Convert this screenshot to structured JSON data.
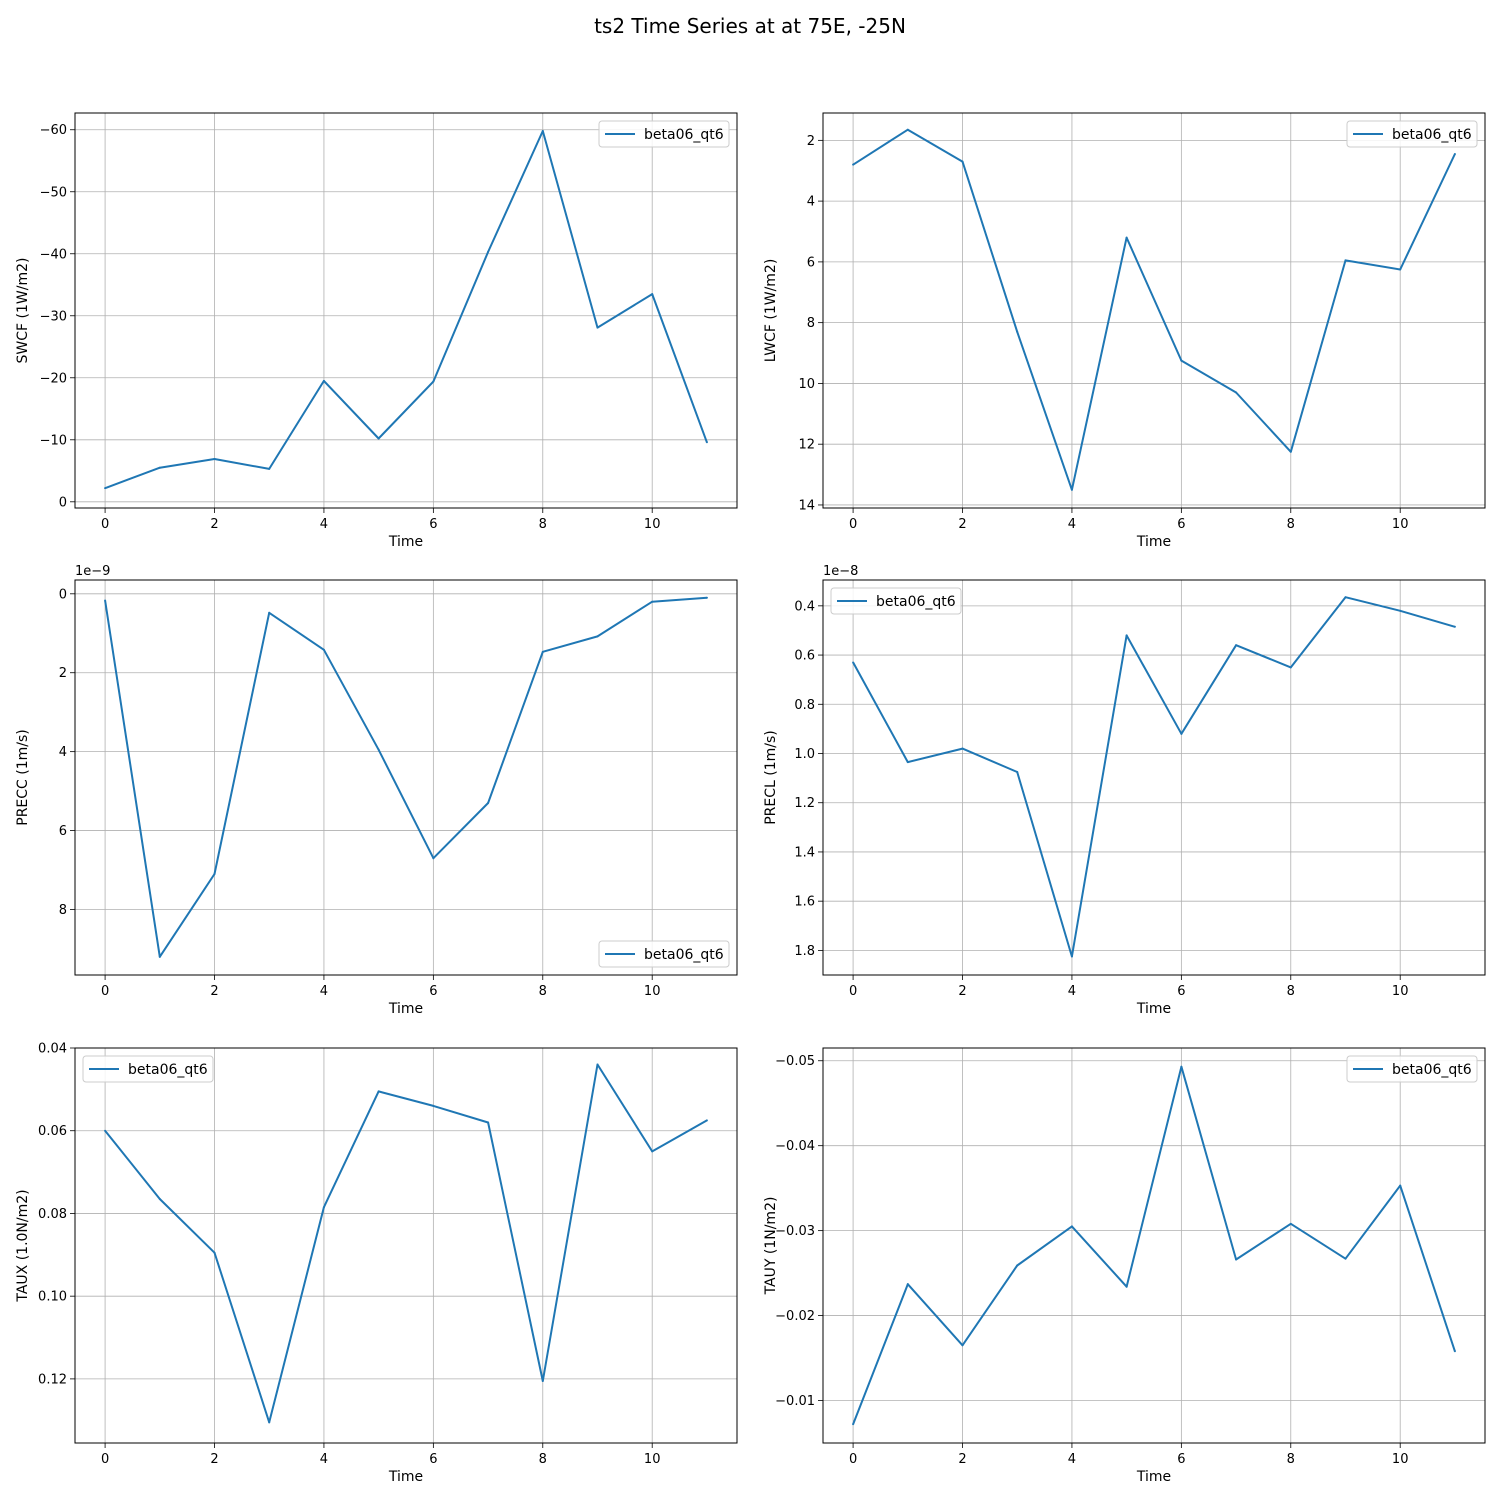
{
  "figure": {
    "title": "ts2 Time Series at at 75E, -25N"
  },
  "colors": {
    "line": "#1f77b4",
    "grid": "#b0b0b0",
    "axes": "#000000",
    "legend_border": "#cccccc"
  },
  "chart_data": [
    {
      "type": "line",
      "xlabel": "Time",
      "ylabel": "SWCF (1W/m2)",
      "exponent_label": "",
      "x": [
        0,
        1,
        2,
        3,
        4,
        5,
        6,
        7,
        8,
        9,
        10,
        11
      ],
      "series": [
        {
          "name": "beta06_qt6",
          "values": [
            -2.2,
            -5.5,
            -6.9,
            -5.3,
            -19.5,
            -10.2,
            -19.4,
            -40.3,
            -59.8,
            -28.1,
            -33.5,
            -9.6
          ]
        }
      ],
      "xlim": [
        -0.55,
        11.55
      ],
      "ylim": [
        1.0,
        -62.7
      ],
      "y_inverted": true,
      "xticks": [
        0,
        2,
        4,
        6,
        8,
        10
      ],
      "xtick_labels": [
        "0",
        "2",
        "4",
        "6",
        "8",
        "10"
      ],
      "yticks": [
        0,
        -10,
        -20,
        -30,
        -40,
        -50,
        -60
      ],
      "ytick_labels": [
        "0",
        "−10",
        "−20",
        "−30",
        "−40",
        "−50",
        "−60"
      ],
      "grid": true,
      "legend_position": "upper right"
    },
    {
      "type": "line",
      "xlabel": "Time",
      "ylabel": "LWCF (1W/m2)",
      "exponent_label": "",
      "x": [
        0,
        1,
        2,
        3,
        4,
        5,
        6,
        7,
        8,
        9,
        10,
        11
      ],
      "series": [
        {
          "name": "beta06_qt6",
          "values": [
            2.8,
            1.65,
            2.7,
            8.3,
            13.5,
            5.2,
            9.25,
            10.3,
            12.25,
            5.95,
            6.25,
            2.45
          ]
        }
      ],
      "xlim": [
        -0.55,
        11.55
      ],
      "ylim": [
        14.1,
        1.1
      ],
      "y_inverted": true,
      "xticks": [
        0,
        2,
        4,
        6,
        8,
        10
      ],
      "xtick_labels": [
        "0",
        "2",
        "4",
        "6",
        "8",
        "10"
      ],
      "yticks": [
        2,
        4,
        6,
        8,
        10,
        12,
        14
      ],
      "ytick_labels": [
        "2",
        "4",
        "6",
        "8",
        "10",
        "12",
        "14"
      ],
      "grid": true,
      "legend_position": "upper right"
    },
    {
      "type": "line",
      "xlabel": "Time",
      "ylabel": "PRECC (1m/s)",
      "exponent_label": "1e−9",
      "x": [
        0,
        1,
        2,
        3,
        4,
        5,
        6,
        7,
        8,
        9,
        10,
        11
      ],
      "series": [
        {
          "name": "beta06_qt6",
          "values": [
            0.17,
            9.2,
            7.1,
            0.48,
            1.42,
            3.95,
            6.7,
            5.3,
            1.47,
            1.08,
            0.2,
            0.1
          ]
        }
      ],
      "xlim": [
        -0.55,
        11.55
      ],
      "ylim": [
        9.66,
        -0.35
      ],
      "y_inverted": true,
      "xticks": [
        0,
        2,
        4,
        6,
        8,
        10
      ],
      "xtick_labels": [
        "0",
        "2",
        "4",
        "6",
        "8",
        "10"
      ],
      "yticks": [
        0,
        2,
        4,
        6,
        8
      ],
      "ytick_labels": [
        "0",
        "2",
        "4",
        "6",
        "8"
      ],
      "grid": true,
      "legend_position": "lower right"
    },
    {
      "type": "line",
      "xlabel": "Time",
      "ylabel": "PRECL (1m/s)",
      "exponent_label": "1e−8",
      "x": [
        0,
        1,
        2,
        3,
        4,
        5,
        6,
        7,
        8,
        9,
        10,
        11
      ],
      "series": [
        {
          "name": "beta06_qt6",
          "values": [
            0.63,
            1.035,
            0.98,
            1.075,
            1.825,
            0.52,
            0.92,
            0.56,
            0.65,
            0.365,
            0.42,
            0.485
          ]
        }
      ],
      "xlim": [
        -0.55,
        11.55
      ],
      "ylim": [
        1.9,
        0.295
      ],
      "y_inverted": true,
      "xticks": [
        0,
        2,
        4,
        6,
        8,
        10
      ],
      "xtick_labels": [
        "0",
        "2",
        "4",
        "6",
        "8",
        "10"
      ],
      "yticks": [
        0.4,
        0.6,
        0.8,
        1.0,
        1.2,
        1.4,
        1.6,
        1.8
      ],
      "ytick_labels": [
        "0.4",
        "0.6",
        "0.8",
        "1.0",
        "1.2",
        "1.4",
        "1.6",
        "1.8"
      ],
      "grid": true,
      "legend_position": "upper left"
    },
    {
      "type": "line",
      "xlabel": "Time",
      "ylabel": "TAUX (1.0N/m2)",
      "exponent_label": "",
      "x": [
        0,
        1,
        2,
        3,
        4,
        5,
        6,
        7,
        8,
        9,
        10,
        11
      ],
      "series": [
        {
          "name": "beta06_qt6",
          "values": [
            0.06,
            0.0765,
            0.0895,
            0.1305,
            0.0785,
            0.0505,
            0.054,
            0.058,
            0.1205,
            0.044,
            0.065,
            0.0575
          ]
        }
      ],
      "xlim": [
        -0.55,
        11.55
      ],
      "ylim": [
        0.1355,
        0.04
      ],
      "y_inverted": true,
      "xticks": [
        0,
        2,
        4,
        6,
        8,
        10
      ],
      "xtick_labels": [
        "0",
        "2",
        "4",
        "6",
        "8",
        "10"
      ],
      "yticks": [
        0.04,
        0.06,
        0.08,
        0.1,
        0.12
      ],
      "ytick_labels": [
        "0.04",
        "0.06",
        "0.08",
        "0.10",
        "0.12"
      ],
      "grid": true,
      "legend_position": "upper left"
    },
    {
      "type": "line",
      "xlabel": "Time",
      "ylabel": "TAUY (1N/m2)",
      "exponent_label": "",
      "x": [
        0,
        1,
        2,
        3,
        4,
        5,
        6,
        7,
        8,
        9,
        10,
        11
      ],
      "series": [
        {
          "name": "beta06_qt6",
          "values": [
            -0.0072,
            -0.0237,
            -0.0165,
            -0.0259,
            -0.0305,
            -0.0234,
            -0.0493,
            -0.0266,
            -0.0308,
            -0.0267,
            -0.0353,
            -0.0158
          ]
        }
      ],
      "xlim": [
        -0.55,
        11.55
      ],
      "ylim": [
        -0.005,
        -0.0515
      ],
      "y_inverted": false,
      "xticks": [
        0,
        2,
        4,
        6,
        8,
        10
      ],
      "xtick_labels": [
        "0",
        "2",
        "4",
        "6",
        "8",
        "10"
      ],
      "yticks": [
        -0.01,
        -0.02,
        -0.03,
        -0.04,
        -0.05
      ],
      "ytick_labels": [
        "−0.01",
        "−0.02",
        "−0.03",
        "−0.04",
        "−0.05"
      ],
      "grid": true,
      "legend_position": "upper right"
    }
  ]
}
